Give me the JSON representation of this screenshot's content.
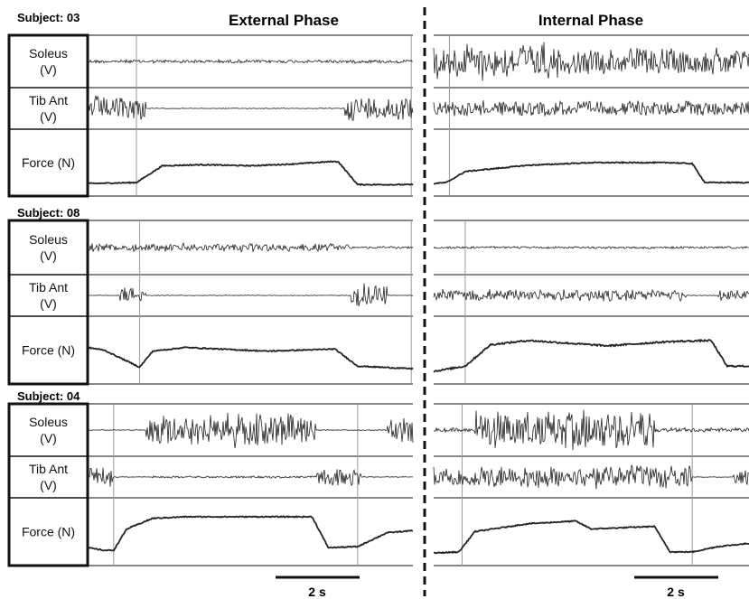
{
  "phase_titles": {
    "external": "External Phase",
    "internal": "Internal Phase"
  },
  "channel_labels": {
    "soleus": [
      "Soleus",
      "(V)"
    ],
    "tibant": [
      "Tib Ant",
      "(V)"
    ],
    "force": [
      "Force (N)"
    ]
  },
  "scale_bar_label": "2 s",
  "colors": {
    "trace": "#222222",
    "frame": "#111111",
    "marker": "#9a9a9a"
  },
  "chart_data": {
    "type": "line",
    "subjects": [
      {
        "label": "Subject: 03",
        "external": {
          "markers": [
            0.15,
            0.995
          ],
          "soleus": [
            {
              "s": 0,
              "e": 1,
              "a": 0.08
            }
          ],
          "tibant": [
            {
              "s": 0,
              "e": 0.18,
              "a": 0.75
            },
            {
              "s": 0.79,
              "e": 1,
              "a": 0.75
            }
          ],
          "force": {
            "points": [
              [
                0,
                0.1
              ],
              [
                0.15,
                0.12
              ],
              [
                0.23,
                0.44
              ],
              [
                0.35,
                0.46
              ],
              [
                0.5,
                0.44
              ],
              [
                0.62,
                0.47
              ],
              [
                0.75,
                0.52
              ],
              [
                0.77,
                0.52
              ],
              [
                0.83,
                0.08
              ],
              [
                1,
                0.08
              ]
            ],
            "noise": 0.02
          }
        },
        "internal": {
          "markers": [
            0.05
          ],
          "soleus": [
            {
              "s": 0,
              "e": 0.4,
              "a": 0.85
            },
            {
              "s": 0.4,
              "e": 1,
              "a": 0.6
            }
          ],
          "tibant": [
            {
              "s": 0,
              "e": 1,
              "a": 0.45
            }
          ],
          "force": {
            "points": [
              [
                0,
                0.1
              ],
              [
                0.04,
                0.12
              ],
              [
                0.1,
                0.33
              ],
              [
                0.3,
                0.45
              ],
              [
                0.5,
                0.5
              ],
              [
                0.75,
                0.5
              ],
              [
                0.82,
                0.48
              ],
              [
                0.86,
                0.12
              ],
              [
                1,
                0.12
              ]
            ],
            "noise": 0.02
          }
        }
      },
      {
        "label": "Subject: 08",
        "external": {
          "markers": [
            0.16,
            0.995
          ],
          "soleus": [
            {
              "s": 0,
              "e": 0.8,
              "a": 0.18
            },
            {
              "s": 0.8,
              "e": 1,
              "a": 0.05
            }
          ],
          "tibant": [
            {
              "s": 0.1,
              "e": 0.18,
              "a": 0.5
            },
            {
              "s": 0.2,
              "e": 0.81,
              "a": 0.02
            },
            {
              "s": 0.81,
              "e": 0.92,
              "a": 0.7
            }
          ],
          "force": {
            "points": [
              [
                0,
                0.55
              ],
              [
                0.05,
                0.5
              ],
              [
                0.16,
                0.18
              ],
              [
                0.2,
                0.48
              ],
              [
                0.3,
                0.55
              ],
              [
                0.55,
                0.48
              ],
              [
                0.76,
                0.52
              ],
              [
                0.83,
                0.2
              ],
              [
                1,
                0.15
              ]
            ],
            "noise": 0.02
          }
        },
        "internal": {
          "markers": [
            0.1
          ],
          "soleus": [
            {
              "s": 0,
              "e": 1,
              "a": 0.05
            }
          ],
          "tibant": [
            {
              "s": 0,
              "e": 0.8,
              "a": 0.35
            },
            {
              "s": 0.9,
              "e": 1,
              "a": 0.3
            }
          ],
          "force": {
            "points": [
              [
                0,
                0.1
              ],
              [
                0.1,
                0.2
              ],
              [
                0.18,
                0.6
              ],
              [
                0.3,
                0.68
              ],
              [
                0.55,
                0.58
              ],
              [
                0.75,
                0.66
              ],
              [
                0.88,
                0.68
              ],
              [
                0.93,
                0.2
              ],
              [
                1,
                0.2
              ]
            ],
            "noise": 0.03
          }
        }
      },
      {
        "label": "Subject: 04",
        "external": {
          "markers": [
            0.08,
            0.83
          ],
          "soleus": [
            {
              "s": 0.18,
              "e": 0.7,
              "a": 0.75
            },
            {
              "s": 0.92,
              "e": 1,
              "a": 0.6
            }
          ],
          "tibant": [
            {
              "s": 0,
              "e": 0.08,
              "a": 0.6
            },
            {
              "s": 0.2,
              "e": 0.7,
              "a": 0.06
            },
            {
              "s": 0.7,
              "e": 0.84,
              "a": 0.55
            }
          ],
          "force": {
            "points": [
              [
                0,
                0.2
              ],
              [
                0.05,
                0.15
              ],
              [
                0.08,
                0.15
              ],
              [
                0.12,
                0.55
              ],
              [
                0.2,
                0.75
              ],
              [
                0.3,
                0.78
              ],
              [
                0.69,
                0.78
              ],
              [
                0.74,
                0.2
              ],
              [
                0.83,
                0.22
              ],
              [
                0.92,
                0.48
              ],
              [
                1,
                0.52
              ]
            ],
            "noise": 0.02
          }
        },
        "internal": {
          "markers": [
            0.09,
            0.82
          ],
          "soleus": [
            {
              "s": 0.13,
              "e": 0.7,
              "a": 0.9
            },
            {
              "s": 0,
              "e": 0.13,
              "a": 0.1
            },
            {
              "s": 0.7,
              "e": 1,
              "a": 0.1
            }
          ],
          "tibant": [
            {
              "s": 0,
              "e": 0.82,
              "a": 0.7
            },
            {
              "s": 0.95,
              "e": 1,
              "a": 0.5
            }
          ],
          "force": {
            "points": [
              [
                0,
                0.1
              ],
              [
                0.08,
                0.12
              ],
              [
                0.13,
                0.5
              ],
              [
                0.3,
                0.65
              ],
              [
                0.45,
                0.7
              ],
              [
                0.5,
                0.55
              ],
              [
                0.7,
                0.6
              ],
              [
                0.7,
                0.6
              ],
              [
                0.75,
                0.12
              ],
              [
                0.82,
                0.12
              ],
              [
                0.9,
                0.22
              ],
              [
                1,
                0.28
              ]
            ],
            "noise": 0.02
          }
        }
      }
    ]
  }
}
